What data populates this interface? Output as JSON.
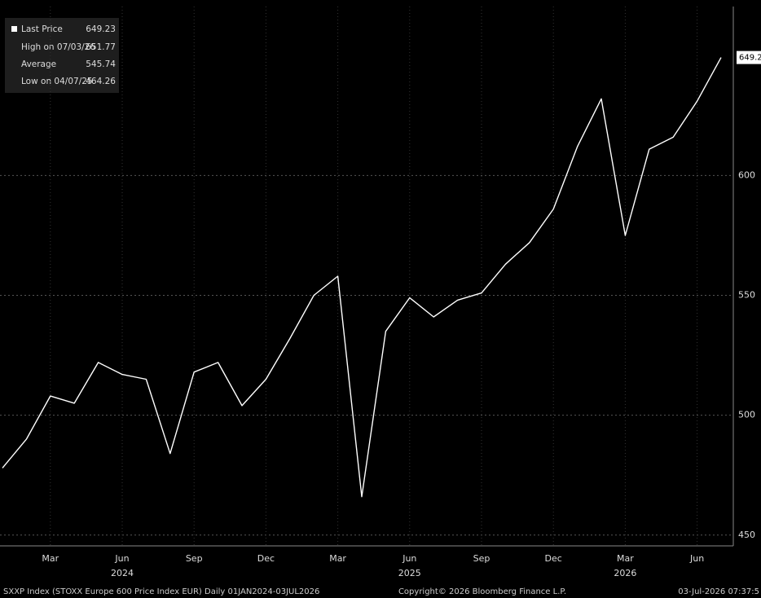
{
  "chart_data": {
    "type": "line",
    "x": [
      "2024-01",
      "2024-02",
      "2024-03",
      "2024-04",
      "2024-05",
      "2024-06",
      "2024-07",
      "2024-08",
      "2024-09",
      "2024-10",
      "2024-11",
      "2024-12",
      "2025-01",
      "2025-02",
      "2025-03",
      "2025-04",
      "2025-05",
      "2025-06",
      "2025-07",
      "2025-08",
      "2025-09",
      "2025-10",
      "2025-11",
      "2025-12",
      "2026-01",
      "2026-02",
      "2026-03",
      "2026-04",
      "2026-05",
      "2026-06",
      "2026-07"
    ],
    "series": [
      {
        "name": "Last Price",
        "color": "#ffffff",
        "values": [
          478,
          490,
          508,
          505,
          522,
          517,
          515,
          484,
          518,
          522,
          504,
          515,
          532,
          550,
          558,
          466,
          535,
          549,
          541,
          548,
          551,
          563,
          572,
          586,
          612,
          632,
          575,
          611,
          616,
          631,
          649.23
        ]
      }
    ],
    "last_price": 649.23,
    "stats": [
      {
        "label": "High on 07/03/26",
        "value": 651.77
      },
      {
        "label": "Average",
        "value": 545.74
      },
      {
        "label": "Low on 04/07/25",
        "value": 464.26
      }
    ],
    "xlim": [
      "2024-01",
      "2026-07"
    ],
    "xticks": [
      {
        "value": "2024-03",
        "label": "Mar"
      },
      {
        "value": "2024-06",
        "label": "Jun"
      },
      {
        "value": "2024-09",
        "label": "Sep"
      },
      {
        "value": "2024-12",
        "label": "Dec"
      },
      {
        "value": "2025-03",
        "label": "Mar"
      },
      {
        "value": "2025-06",
        "label": "Jun"
      },
      {
        "value": "2025-09",
        "label": "Sep"
      },
      {
        "value": "2025-12",
        "label": "Dec"
      },
      {
        "value": "2026-03",
        "label": "Mar"
      },
      {
        "value": "2026-06",
        "label": "Jun"
      }
    ],
    "year_labels": [
      {
        "value": "2024-06",
        "label": "2024"
      },
      {
        "value": "2025-06",
        "label": "2025"
      },
      {
        "value": "2026-03",
        "label": "2026"
      }
    ],
    "ylim": [
      445.5,
      670.5
    ],
    "yticks": [
      450,
      500,
      550,
      600
    ],
    "grid": true,
    "footer": {
      "left": "SXXP Index (STOXX Europe 600 Price Index EUR) Daily 01JAN2024-03JUL2026",
      "center": "Copyright© 2026 Bloomberg Finance L.P.",
      "right": "03-Jul-2026 07:37:5"
    }
  }
}
